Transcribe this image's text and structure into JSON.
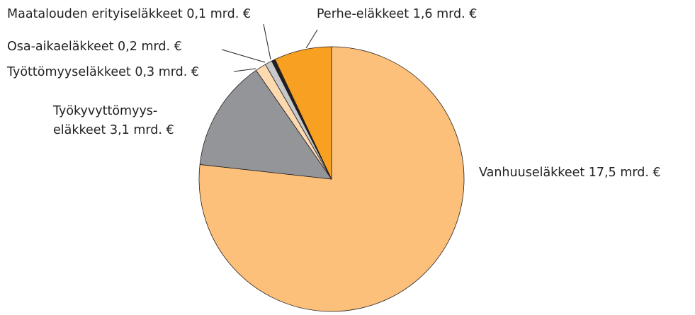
{
  "chart_data": {
    "type": "pie",
    "categories": [
      "Vanhuuseläkkeet",
      [
        "Työkyvyttömyys-",
        "eläkkeet"
      ],
      "Työttömyyseläkkeet",
      "Osa-aikaeläkkeet",
      "Maatalouden erityiseläkkeet",
      "Perhe-eläkkeet"
    ],
    "values": [
      17.5,
      3.1,
      0.3,
      0.2,
      0.1,
      1.6
    ],
    "value_labels": [
      "17,5 mrd. €",
      "3,1 mrd. €",
      "0,3 mrd. €",
      "0,2 mrd. €",
      "0,1 mrd. €",
      "1,6 mrd. €"
    ],
    "colors": [
      "#fdc07a",
      "#939598",
      "#fdd9b0",
      "#c8c9cb",
      "#231f20",
      "#f7a021"
    ]
  }
}
